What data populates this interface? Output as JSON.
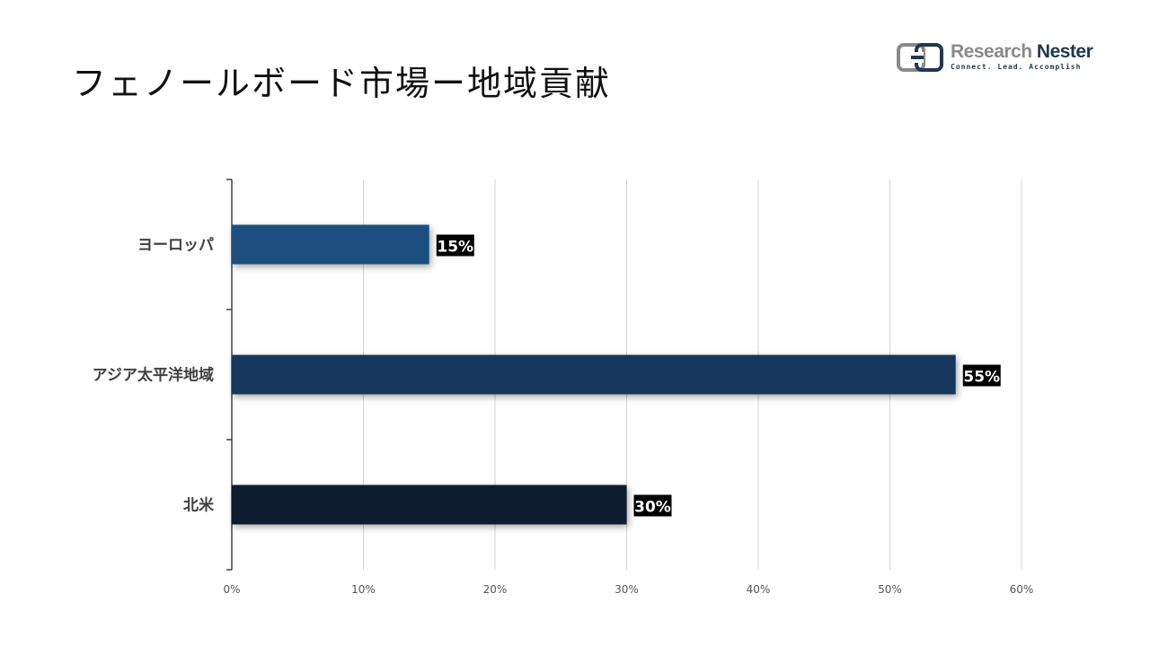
{
  "title": "フェノールボード市場ー地域貢献",
  "logo": {
    "name_part1": "Research",
    "name_part2": "Nester",
    "tagline": "Connect. Lead. Accomplish",
    "colors": {
      "gray": "#8a8a8a",
      "navy": "#1f3850"
    }
  },
  "chart_data": {
    "type": "bar",
    "orientation": "horizontal",
    "categories": [
      "ヨーロッパ",
      "アジア太平洋地域",
      "北米"
    ],
    "values": [
      15,
      55,
      30
    ],
    "data_labels": [
      "15%",
      "55%",
      "30%"
    ],
    "bar_colors": [
      "#1f5080",
      "#16375c",
      "#0d1d2d"
    ],
    "xlim": [
      0,
      60
    ],
    "xticks": [
      0,
      10,
      20,
      30,
      40,
      50,
      60
    ],
    "xtick_labels": [
      "0%",
      "10%",
      "20%",
      "30%",
      "40%",
      "50%",
      "60%"
    ],
    "grid": true,
    "legend": "none"
  }
}
